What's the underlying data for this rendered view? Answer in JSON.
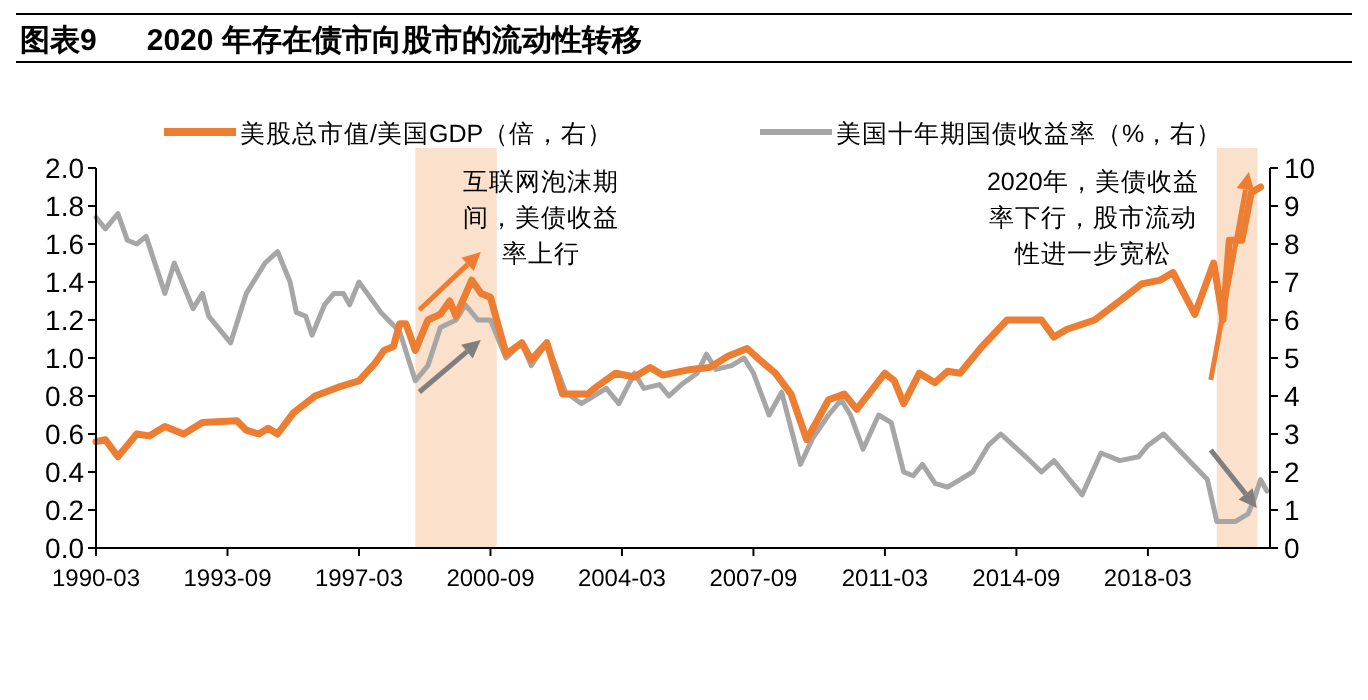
{
  "chart_data": {
    "type": "line",
    "title": "图表9      2020 年存在债市向股市的流动性转移",
    "xlim": [
      "1990-03",
      "2021-06"
    ],
    "xticks": [
      "1990-03",
      "1993-09",
      "1997-03",
      "2000-09",
      "2004-03",
      "2007-09",
      "2011-03",
      "2014-09",
      "2018-03"
    ],
    "ylim": [
      0,
      2
    ],
    "yticks": [
      {
        "value": 0,
        "label": "0.0"
      },
      {
        "value": 0.2,
        "label": "0.2"
      },
      {
        "value": 0.4,
        "label": "0.4"
      },
      {
        "value": 0.6,
        "label": "0.6"
      },
      {
        "value": 0.8,
        "label": "0.8"
      },
      {
        "value": 1,
        "label": "1.0"
      },
      {
        "value": 1.2,
        "label": "1.2"
      },
      {
        "value": 1.4,
        "label": "1.4"
      },
      {
        "value": 1.6,
        "label": "1.6"
      },
      {
        "value": 1.8,
        "label": "1.8"
      },
      {
        "value": 2,
        "label": "2.0"
      }
    ],
    "y2lim": [
      0,
      10
    ],
    "y2ticks": [
      0,
      1,
      2,
      3,
      4,
      5,
      6,
      7,
      8,
      9,
      10
    ],
    "legend": "top",
    "grid": false,
    "marker": "none",
    "line_style": "solid",
    "bands": [
      {
        "axis": "x",
        "from": "1998-09",
        "to": "2000-11",
        "color": "#fbe0cc"
      },
      {
        "axis": "x",
        "from": "2020-01",
        "to": "2021-02",
        "color": "#fbe0cc"
      }
    ],
    "annotations": [
      "互联网泡沫期间，美债收益率上行",
      "2020年，美债收益率下行，股市流动性进一步宽松"
    ],
    "series": [
      {
        "name": "美股总市值/美国GDP（倍，右）",
        "color": "#ed7d31",
        "axis": "y",
        "x": [
          "1990-03",
          "1990-06",
          "1990-10",
          "1991-01",
          "1991-04",
          "1991-08",
          "1992-01",
          "1992-07",
          "1993-01",
          "1993-12",
          "1994-03",
          "1994-07",
          "1994-10",
          "1995-01",
          "1995-06",
          "1996-01",
          "1996-09",
          "1997-03",
          "1997-08",
          "1997-11",
          "1998-02",
          "1998-04",
          "1998-06",
          "1998-09",
          "1999-01",
          "1999-05",
          "1999-08",
          "1999-10",
          "2000-03",
          "2000-06",
          "2000-09",
          "2001-02",
          "2001-07",
          "2001-10",
          "2002-03",
          "2002-08",
          "2003-04",
          "2003-07",
          "2004-01",
          "2004-07",
          "2004-12",
          "2005-04",
          "2006-01",
          "2006-07",
          "2007-01",
          "2007-07",
          "2007-11",
          "2008-04",
          "2008-09",
          "2009-02",
          "2009-09",
          "2010-02",
          "2010-06",
          "2011-03",
          "2011-06",
          "2011-09",
          "2012-02",
          "2012-07",
          "2012-11",
          "2013-03",
          "2013-10",
          "2014-06",
          "2014-10",
          "2015-05",
          "2015-09",
          "2016-01",
          "2016-10",
          "2017-06",
          "2018-01",
          "2018-07",
          "2018-11",
          "2019-06",
          "2019-10",
          "2019-12",
          "2020-03",
          "2020-05",
          "2020-09",
          "2020-12",
          "2021-03"
        ],
        "values": [
          0.56,
          0.57,
          0.48,
          0.54,
          0.6,
          0.59,
          0.64,
          0.6,
          0.66,
          0.67,
          0.62,
          0.6,
          0.63,
          0.6,
          0.71,
          0.8,
          0.85,
          0.88,
          0.97,
          1.04,
          1.06,
          1.18,
          1.18,
          1.04,
          1.2,
          1.23,
          1.3,
          1.22,
          1.41,
          1.34,
          1.32,
          1.02,
          1.08,
          0.99,
          1.08,
          0.81,
          0.81,
          0.85,
          0.92,
          0.9,
          0.95,
          0.91,
          0.94,
          0.95,
          1.01,
          1.05,
          0.99,
          0.92,
          0.81,
          0.57,
          0.78,
          0.81,
          0.73,
          0.92,
          0.88,
          0.76,
          0.92,
          0.87,
          0.93,
          0.92,
          1.06,
          1.2,
          1.2,
          1.2,
          1.11,
          1.15,
          1.2,
          1.3,
          1.39,
          1.41,
          1.45,
          1.23,
          1.41,
          1.5,
          1.2,
          1.62,
          1.62,
          1.87,
          1.9
        ]
      },
      {
        "name": "美国十年期国债收益率（%，右）",
        "color": "#a6a6a6",
        "axis": "y2",
        "x": [
          "1990-03",
          "1990-06",
          "1990-10",
          "1991-01",
          "1991-04",
          "1991-07",
          "1992-01",
          "1992-04",
          "1992-10",
          "1993-01",
          "1993-03",
          "1993-10",
          "1994-03",
          "1994-09",
          "1995-01",
          "1995-05",
          "1995-07",
          "1995-10",
          "1995-12",
          "1996-04",
          "1996-07",
          "1996-10",
          "1996-12",
          "1997-03",
          "1997-10",
          "1998-04",
          "1998-09",
          "1999-01",
          "1999-05",
          "1999-10",
          "2000-01",
          "2000-05",
          "2000-09",
          "2001-02",
          "2001-07",
          "2001-10",
          "2002-03",
          "2002-09",
          "2003-02",
          "2003-06",
          "2003-10",
          "2004-02",
          "2004-07",
          "2004-10",
          "2005-03",
          "2005-06",
          "2005-10",
          "2006-03",
          "2006-06",
          "2006-09",
          "2007-02",
          "2007-06",
          "2007-09",
          "2008-02",
          "2008-06",
          "2008-12",
          "2009-04",
          "2009-09",
          "2010-01",
          "2010-04",
          "2010-08",
          "2011-01",
          "2011-05",
          "2011-09",
          "2011-12",
          "2012-03",
          "2012-07",
          "2012-11",
          "2013-03",
          "2013-07",
          "2013-12",
          "2014-04",
          "2014-08",
          "2014-12",
          "2015-05",
          "2015-09",
          "2015-12",
          "2016-06",
          "2016-12",
          "2017-06",
          "2017-12",
          "2018-03",
          "2018-08",
          "2019-10",
          "2020-01",
          "2020-07",
          "2020-11",
          "2021-01",
          "2021-03",
          "2021-05"
        ],
        "values": [
          8.7,
          8.4,
          8.8,
          8.1,
          8.0,
          8.2,
          6.7,
          7.5,
          6.3,
          6.7,
          6.1,
          5.4,
          6.7,
          7.5,
          7.8,
          7.0,
          6.2,
          6.1,
          5.6,
          6.4,
          6.7,
          6.7,
          6.4,
          7.0,
          6.2,
          5.7,
          4.4,
          4.8,
          5.8,
          6.0,
          6.4,
          6.0,
          6.0,
          5.0,
          5.4,
          4.8,
          5.4,
          4.1,
          3.8,
          4.0,
          4.2,
          3.8,
          4.6,
          4.2,
          4.3,
          4.0,
          4.3,
          4.6,
          5.1,
          4.7,
          4.8,
          5.0,
          4.6,
          3.5,
          4.1,
          2.2,
          2.9,
          3.5,
          3.9,
          3.5,
          2.6,
          3.5,
          3.3,
          2.0,
          1.9,
          2.2,
          1.7,
          1.6,
          1.8,
          2.0,
          2.7,
          3.0,
          2.7,
          2.4,
          2.0,
          2.3,
          2.0,
          1.4,
          2.5,
          2.3,
          2.4,
          2.7,
          3.0,
          1.8,
          0.7,
          0.7,
          0.9,
          1.3,
          1.8,
          1.5
        ]
      }
    ]
  }
}
